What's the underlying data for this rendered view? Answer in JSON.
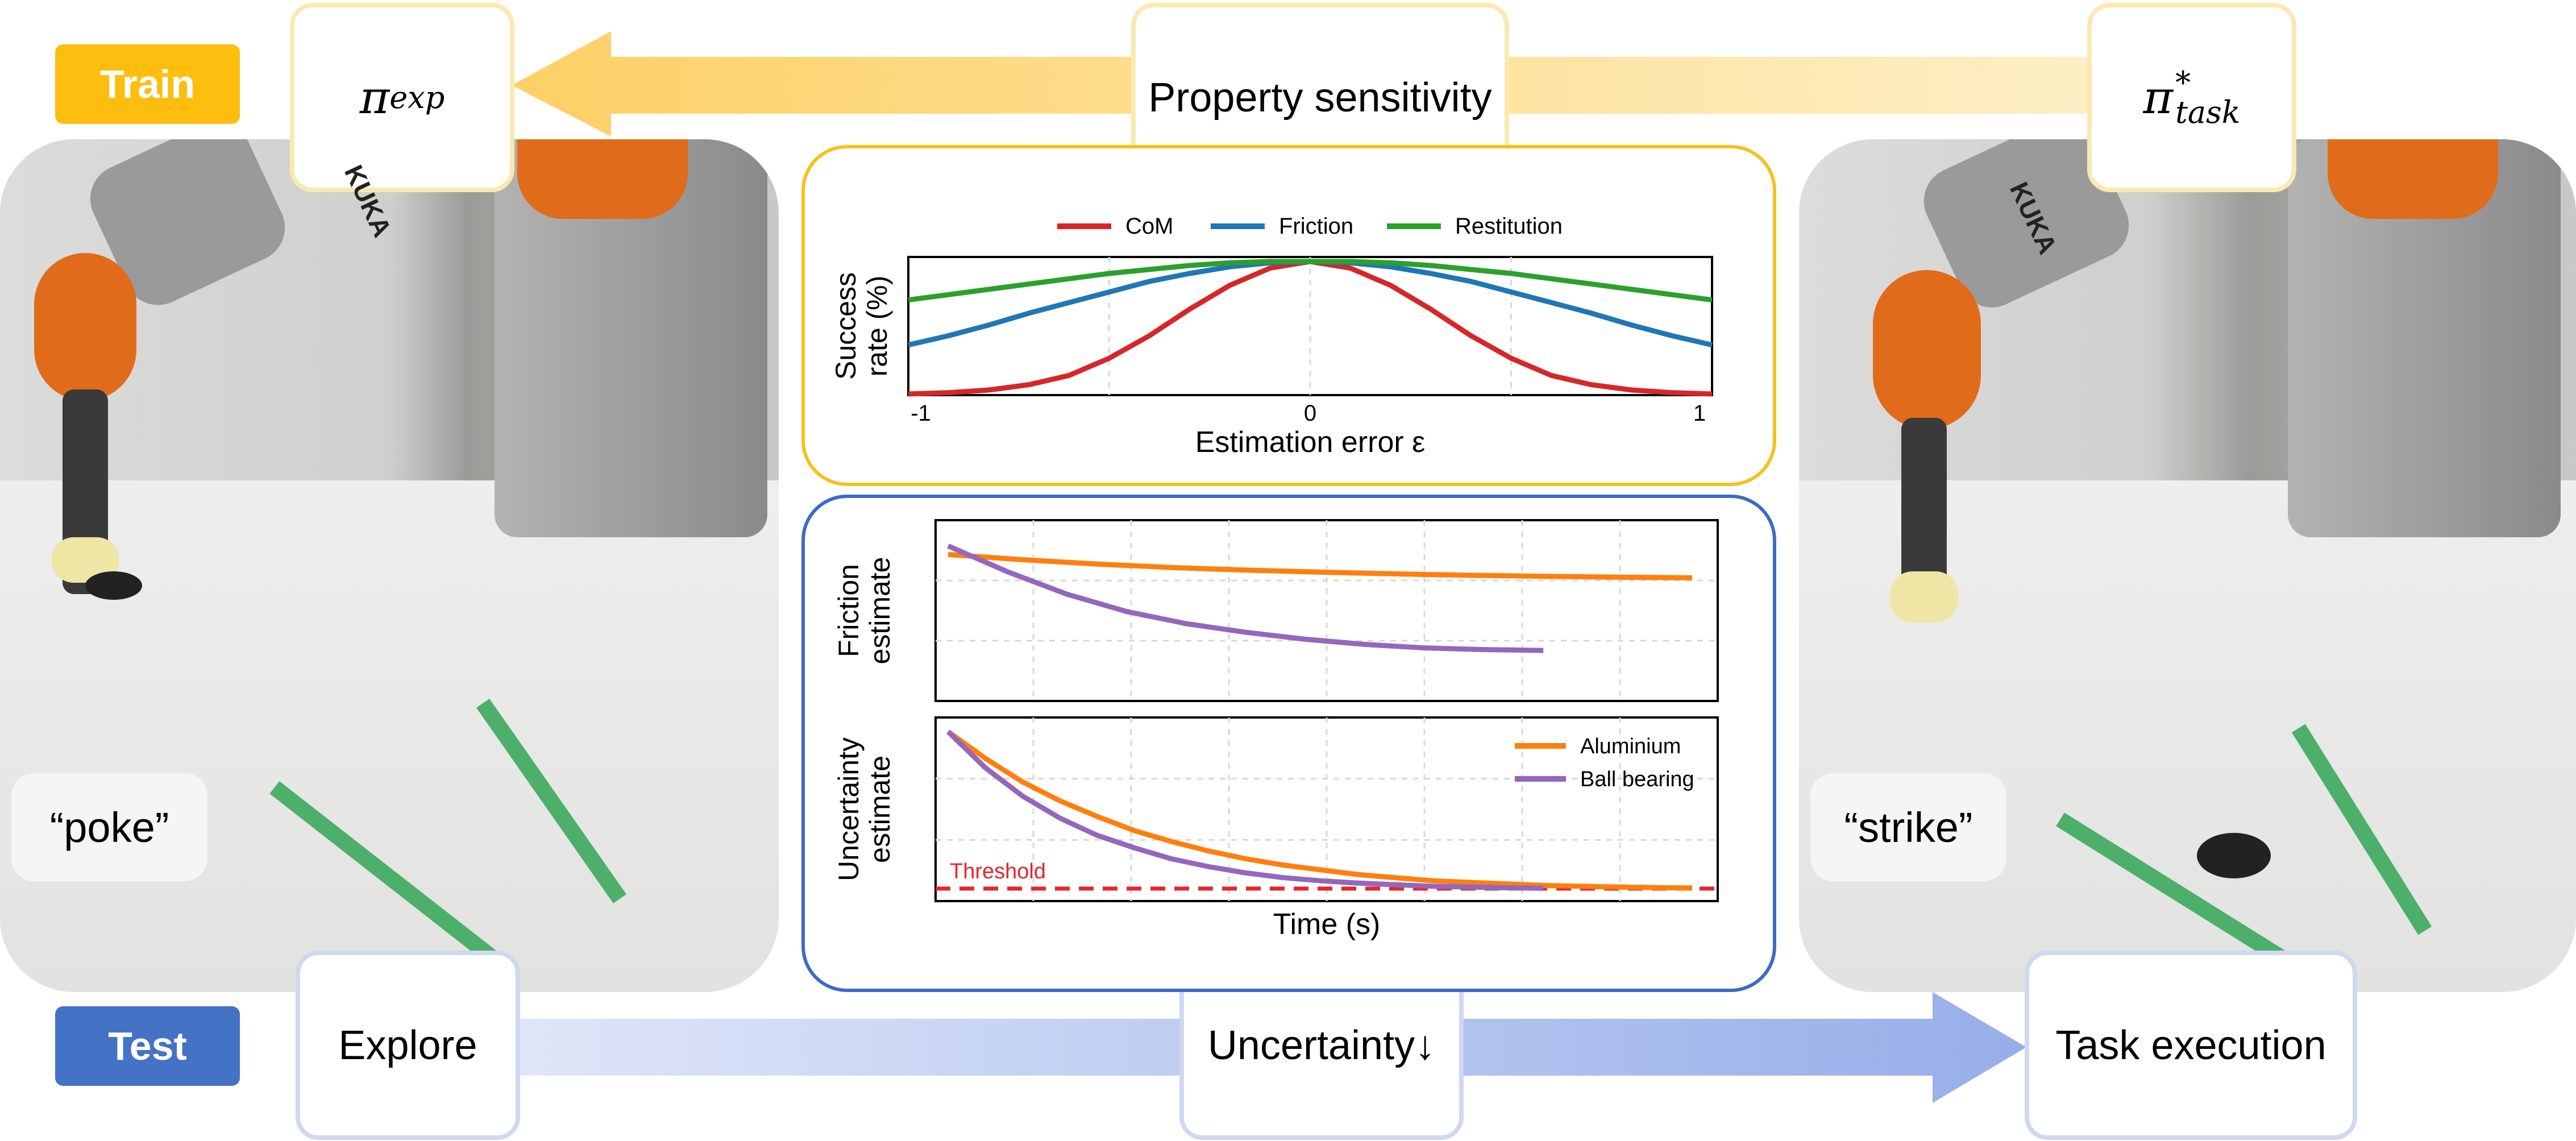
{
  "train_label": "Train",
  "test_label": "Test",
  "top_row": {
    "left": "π",
    "left_sub": "exp",
    "center": "Property sensitivity",
    "right": "π",
    "right_sup": "*",
    "right_sub": "task"
  },
  "bottom_row": {
    "left": "Explore",
    "center": "Uncertainty↓",
    "right": "Task execution"
  },
  "quotes": {
    "left": "“poke”",
    "right": "“strike”"
  },
  "robot_label": "KUKA",
  "colors": {
    "train": "#fdbe10",
    "test": "#4472c4",
    "com": "#d62728",
    "friction": "#1f77b4",
    "restitution": "#2ca02c",
    "aluminium": "#ff7f0e",
    "ball_bearing": "#9467bd",
    "threshold": "#e8242e"
  },
  "chart_data": [
    {
      "type": "line",
      "xlabel": "Estimation error ε",
      "ylabel": "Success rate (%)",
      "xlim": [
        -1,
        1
      ],
      "xticks": [
        "-1",
        "0",
        "1"
      ],
      "legend_position": "top",
      "series": [
        {
          "name": "CoM",
          "x": [
            -1,
            -0.9,
            -0.8,
            -0.7,
            -0.6,
            -0.5,
            -0.4,
            -0.3,
            -0.2,
            -0.1,
            0,
            0.1,
            0.2,
            0.3,
            0.4,
            0.5,
            0.6,
            0.7,
            0.8,
            0.9,
            1
          ],
          "y": [
            0.0,
            0.01,
            0.03,
            0.07,
            0.14,
            0.27,
            0.44,
            0.64,
            0.82,
            0.95,
            1.0,
            0.95,
            0.82,
            0.64,
            0.44,
            0.27,
            0.14,
            0.07,
            0.03,
            0.01,
            0.0
          ]
        },
        {
          "name": "Friction",
          "x": [
            -1,
            -0.9,
            -0.8,
            -0.7,
            -0.6,
            -0.5,
            -0.4,
            -0.3,
            -0.2,
            -0.1,
            0,
            0.1,
            0.2,
            0.3,
            0.4,
            0.5,
            0.6,
            0.7,
            0.8,
            0.9,
            1
          ],
          "y": [
            0.37,
            0.44,
            0.52,
            0.61,
            0.69,
            0.77,
            0.85,
            0.91,
            0.96,
            0.99,
            1.0,
            0.99,
            0.96,
            0.91,
            0.85,
            0.77,
            0.69,
            0.61,
            0.52,
            0.44,
            0.37
          ]
        },
        {
          "name": "Restitution",
          "x": [
            -1,
            -0.9,
            -0.8,
            -0.7,
            -0.6,
            -0.5,
            -0.4,
            -0.3,
            -0.2,
            -0.1,
            0,
            0.1,
            0.2,
            0.3,
            0.4,
            0.5,
            0.6,
            0.7,
            0.8,
            0.9,
            1
          ],
          "y": [
            0.71,
            0.75,
            0.79,
            0.83,
            0.87,
            0.91,
            0.94,
            0.97,
            0.99,
            1.0,
            1.0,
            1.0,
            0.99,
            0.97,
            0.94,
            0.91,
            0.87,
            0.83,
            0.79,
            0.75,
            0.71
          ]
        }
      ]
    },
    {
      "type": "line",
      "xlabel": "",
      "ylabel": "Friction estimate",
      "series": [
        {
          "name": "Aluminium",
          "x": [
            0,
            1,
            2,
            3,
            4,
            5,
            6,
            7,
            8,
            9,
            10
          ],
          "y": [
            0.75,
            0.72,
            0.695,
            0.675,
            0.66,
            0.648,
            0.638,
            0.63,
            0.624,
            0.619,
            0.615
          ]
        },
        {
          "name": "Ball bearing",
          "x": [
            0,
            0.8,
            1.6,
            2.4,
            3.2,
            4,
            4.8,
            5.6,
            6.4,
            7.2,
            8
          ],
          "y": [
            0.8,
            0.65,
            0.52,
            0.42,
            0.35,
            0.3,
            0.26,
            0.23,
            0.21,
            0.2,
            0.195
          ]
        }
      ]
    },
    {
      "type": "line",
      "xlabel": "Time (s)",
      "ylabel": "Uncertainty estimate",
      "legend_position": "top-right",
      "threshold_label": "Threshold",
      "threshold_value": 0,
      "series": [
        {
          "name": "Aluminium",
          "x": [
            0,
            0.5,
            1,
            1.5,
            2,
            2.5,
            3,
            3.5,
            4,
            4.5,
            5,
            5.5,
            6,
            6.5,
            7,
            7.5,
            8,
            8.5,
            9,
            9.5,
            10
          ],
          "y": [
            1.0,
            0.83,
            0.68,
            0.56,
            0.46,
            0.37,
            0.3,
            0.24,
            0.19,
            0.15,
            0.12,
            0.09,
            0.07,
            0.05,
            0.04,
            0.03,
            0.02,
            0.015,
            0.01,
            0.006,
            0.004
          ]
        },
        {
          "name": "Ball bearing",
          "x": [
            0,
            0.5,
            1,
            1.5,
            2,
            2.5,
            3,
            3.5,
            4,
            4.5,
            5,
            5.5,
            6,
            6.5,
            7,
            7.5,
            8
          ],
          "y": [
            1.0,
            0.77,
            0.59,
            0.45,
            0.34,
            0.26,
            0.19,
            0.14,
            0.1,
            0.07,
            0.05,
            0.035,
            0.025,
            0.015,
            0.01,
            0.005,
            0.002
          ]
        }
      ]
    }
  ]
}
